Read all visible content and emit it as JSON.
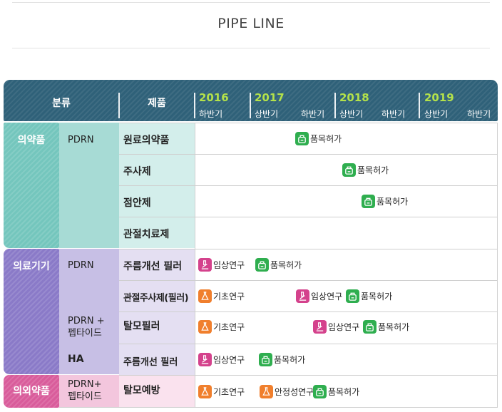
{
  "page": {
    "title": "PIPE LINE"
  },
  "header": {
    "category_label": "분류",
    "product_label": "제품",
    "years": [
      "2016",
      "2017",
      "2018",
      "2019"
    ],
    "halves": [
      "하반기",
      "상반기",
      "하반기",
      "상반기",
      "하반기",
      "상반기",
      "하반기"
    ]
  },
  "groups": [
    {
      "label": "의약품",
      "color": "#74c6bd",
      "subs": [
        "PDRN"
      ]
    },
    {
      "label": "의료기기",
      "color": "#8a7ac8",
      "subs": [
        "PDRN",
        "PDRN +\n펩타이드",
        "HA"
      ]
    },
    {
      "label": "의외약품",
      "color": "#d95c9b",
      "subs": [
        "PDRN+\n펩타이드"
      ]
    }
  ],
  "rows": [
    {
      "product": "원료의약품",
      "items": [
        {
          "label": "품목허가",
          "icon": "license-icon"
        }
      ]
    },
    {
      "product": "주사제",
      "items": [
        {
          "label": "품목허가",
          "icon": "license-icon"
        }
      ]
    },
    {
      "product": "점안제",
      "items": [
        {
          "label": "품목허가",
          "icon": "license-icon"
        }
      ]
    },
    {
      "product": "관절치료제",
      "items": []
    },
    {
      "product": "주름개선 필러",
      "items": [
        {
          "label": "임상연구",
          "icon": "microscope-icon"
        },
        {
          "label": "품목허가",
          "icon": "license-icon"
        }
      ]
    },
    {
      "product": "관절주사제(필러)",
      "items": [
        {
          "label": "기초연구",
          "icon": "flask-icon"
        },
        {
          "label": "임상연구",
          "icon": "microscope-icon"
        },
        {
          "label": "품목허가",
          "icon": "license-icon"
        }
      ]
    },
    {
      "product": "탈모필러",
      "items": [
        {
          "label": "기초연구",
          "icon": "flask-icon"
        },
        {
          "label": "임상연구",
          "icon": "microscope-icon"
        },
        {
          "label": "품목허가",
          "icon": "license-icon"
        }
      ]
    },
    {
      "product": "주름개선 필러",
      "items": [
        {
          "label": "임상연구",
          "icon": "microscope-icon"
        },
        {
          "label": "품목허가",
          "icon": "license-icon"
        }
      ]
    },
    {
      "product": "탈모예방",
      "items": [
        {
          "label": "기초연구",
          "icon": "flask-icon"
        },
        {
          "label": "안정성연구",
          "icon": "flask-icon"
        },
        {
          "label": "품목허가",
          "icon": "license-icon"
        }
      ]
    }
  ],
  "colors": {
    "header_bg": "#2f6179",
    "year_text": "#b4e24a",
    "license": "#2fae4f",
    "clinical": "#d4428c",
    "research": "#f07f2d"
  }
}
